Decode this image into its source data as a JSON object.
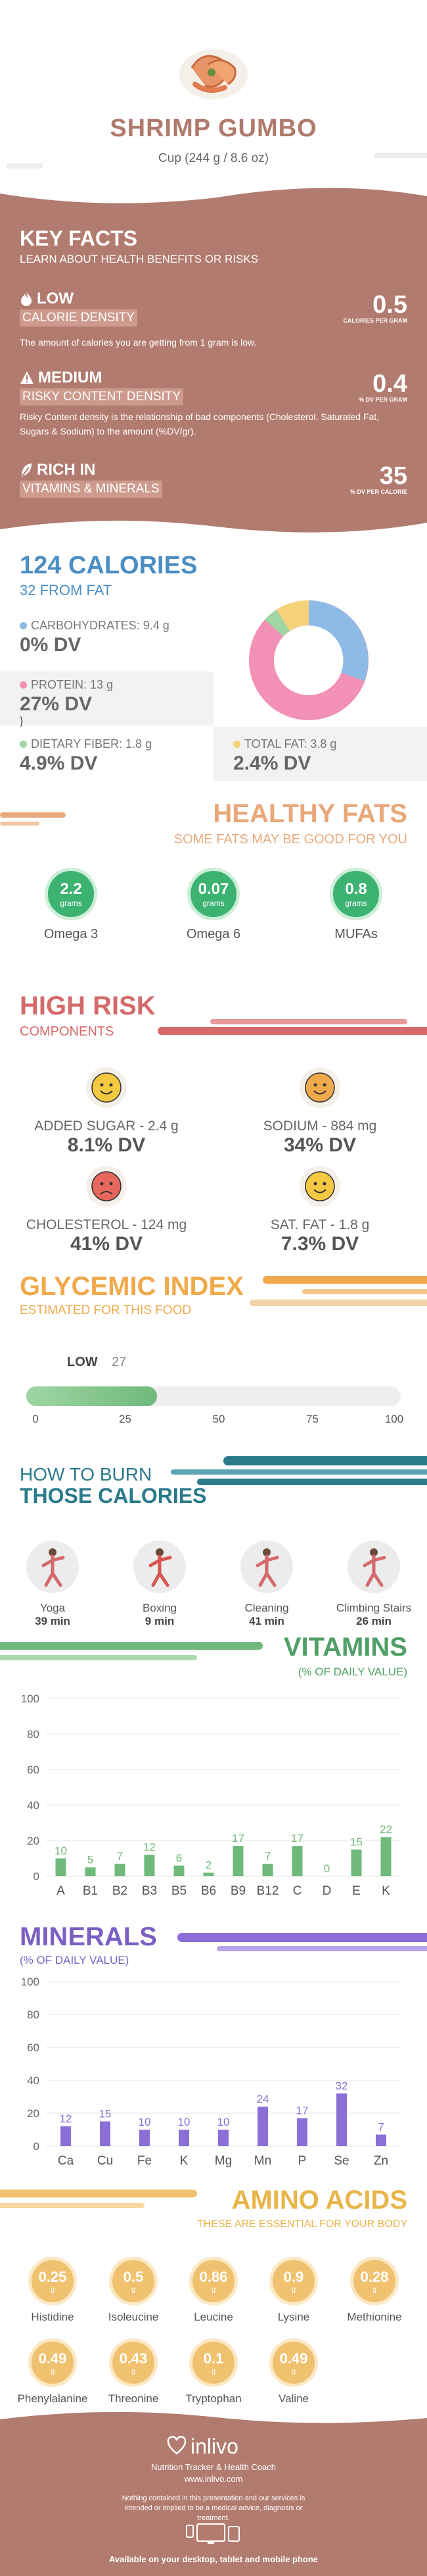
{
  "header": {
    "title": "SHRIMP GUMBO",
    "serving": "Cup (244 g / 8.6 oz)"
  },
  "key_facts": {
    "title": "KEY FACTS",
    "subtitle": "LEARN ABOUT HEALTH BENEFITS OR RISKS",
    "items": [
      {
        "level": "LOW",
        "label": "CALORIE DENSITY",
        "value": "0.5",
        "unit": "CALORIES PER GRAM",
        "desc": "The amount of calories you are getting from 1 gram is low."
      },
      {
        "level": "MEDIUM",
        "label": "RISKY CONTENT DENSITY",
        "value": "0.4",
        "unit": "% DV PER GRAM",
        "desc": "Risky Content density is the relationship of bad components (Cholesterol, Saturated Fat, Sugars & Sodium) to the amount (%DV/gr)."
      },
      {
        "level": "RICH  IN",
        "label": "VITAMINS & MINERALS",
        "value": "35",
        "unit": "% DV PER CALORIE",
        "desc": ""
      }
    ]
  },
  "calories": {
    "title": "124 CALORIES",
    "from_fat": "32 FROM FAT",
    "carbs": {
      "label": "CARBOHYDRATES: 9.4 g",
      "dv": "0% DV"
    },
    "protein": {
      "label": "PROTEIN: 13 g",
      "dv": "27% DV"
    },
    "fiber": {
      "label": "DIETARY FIBER: 1.8 g",
      "dv": "4.9% DV"
    },
    "fat": {
      "label": "TOTAL FAT: 3.8 g",
      "dv": "2.4% DV"
    }
  },
  "healthy_fats": {
    "title": "HEALTHY FATS",
    "subtitle": "SOME FATS MAY BE GOOD FOR YOU",
    "items": [
      {
        "value": "2.2",
        "unit": "grams",
        "name": "Omega 3"
      },
      {
        "value": "0.07",
        "unit": "grams",
        "name": "Omega 6"
      },
      {
        "value": "0.8",
        "unit": "grams",
        "name": "MUFAs"
      }
    ]
  },
  "high_risk": {
    "title": "HIGH RISK",
    "subtitle": "COMPONENTS",
    "items": [
      {
        "label": "ADDED SUGAR - 2.4 g",
        "dv": "8.1% DV",
        "mood": "happy",
        "color": "#f5c842"
      },
      {
        "label": "SODIUM - 884 mg",
        "dv": "34% DV",
        "mood": "happy",
        "color": "#f0a94a"
      },
      {
        "label": "CHOLESTEROL - 124 mg",
        "dv": "41% DV",
        "mood": "sad",
        "color": "#e8675d"
      },
      {
        "label": "SAT. FAT - 1.8 g",
        "dv": "7.3% DV",
        "mood": "happy",
        "color": "#f5c842"
      }
    ]
  },
  "glycemic": {
    "title": "GLYCEMIC INDEX",
    "subtitle": "ESTIMATED FOR THIS FOOD",
    "level": "LOW",
    "value": "27",
    "fraction": 0.27,
    "ticks": [
      "0",
      "25",
      "50",
      "75",
      "100"
    ]
  },
  "burn": {
    "title1": "HOW TO BURN",
    "title2": "THOSE CALORIES",
    "items": [
      {
        "name": "Yoga",
        "time": "39 min"
      },
      {
        "name": "Boxing",
        "time": "9 min"
      },
      {
        "name": "Cleaning",
        "time": "41 min"
      },
      {
        "name": "Climbing Stairs",
        "time": "26 min"
      }
    ]
  },
  "vitamins": {
    "title": "VITAMINS",
    "subtitle": "(% OF DAILY VALUE)"
  },
  "minerals": {
    "title": "MINERALS",
    "subtitle": "(% OF DAILY VALUE)"
  },
  "chart_data": [
    {
      "type": "bar",
      "title": "VITAMINS",
      "ylim": [
        0,
        100
      ],
      "yticks": [
        "0",
        "20",
        "40",
        "60",
        "80",
        "100"
      ],
      "categories": [
        "A",
        "B1",
        "B2",
        "B3",
        "B5",
        "B6",
        "B9",
        "B12",
        "C",
        "D",
        "E",
        "K"
      ],
      "values": [
        10,
        5,
        7,
        12,
        6,
        2,
        17,
        7,
        17,
        0,
        15,
        22
      ],
      "labels": [
        "10",
        "5",
        "7",
        "12",
        "6",
        "2",
        "17",
        "7",
        "17",
        "0",
        "15",
        "22"
      ],
      "color": "#6fb97a"
    },
    {
      "type": "bar",
      "title": "MINERALS",
      "ylim": [
        0,
        100
      ],
      "yticks": [
        "0",
        "20",
        "40",
        "60",
        "80",
        "100"
      ],
      "categories": [
        "Ca",
        "Cu",
        "Fe",
        "K",
        "Mg",
        "Mn",
        "P",
        "Se",
        "Zn"
      ],
      "values": [
        12,
        15,
        10,
        10,
        10,
        24,
        17,
        32,
        7
      ],
      "labels": [
        "12",
        "15",
        "10",
        "10",
        "10",
        "24",
        "17",
        "32",
        "7"
      ],
      "color": "#8b6fd6"
    }
  ],
  "amino": {
    "title": "AMINO ACIDS",
    "subtitle": "THESE ARE ESSENTIAL FOR YOUR BODY",
    "items": [
      {
        "value": "0.25",
        "unit": "g",
        "name": "Histidine"
      },
      {
        "value": "0.5",
        "unit": "g",
        "name": "Isoleucine"
      },
      {
        "value": "0.86",
        "unit": "g",
        "name": "Leucine"
      },
      {
        "value": "0.9",
        "unit": "g",
        "name": "Lysine"
      },
      {
        "value": "0.28",
        "unit": "g",
        "name": "Methionine"
      },
      {
        "value": "0.49",
        "unit": "g",
        "name": "Phenylalanine"
      },
      {
        "value": "0.43",
        "unit": "g",
        "name": "Threonine"
      },
      {
        "value": "0.1",
        "unit": "g",
        "name": "Tryptophan"
      },
      {
        "value": "0.49",
        "unit": "g",
        "name": "Valine"
      }
    ]
  },
  "footer": {
    "brand": "inlivo",
    "tagline": "Nutrition Tracker & Health Coach",
    "url": "www.inlivo.com",
    "disclaimer": "Nothing contained in this presentation and our services is intended or implied to be a medical advice, diagnosis or treatment.",
    "available": "Available on your desktop, tablet and mobile phone"
  }
}
